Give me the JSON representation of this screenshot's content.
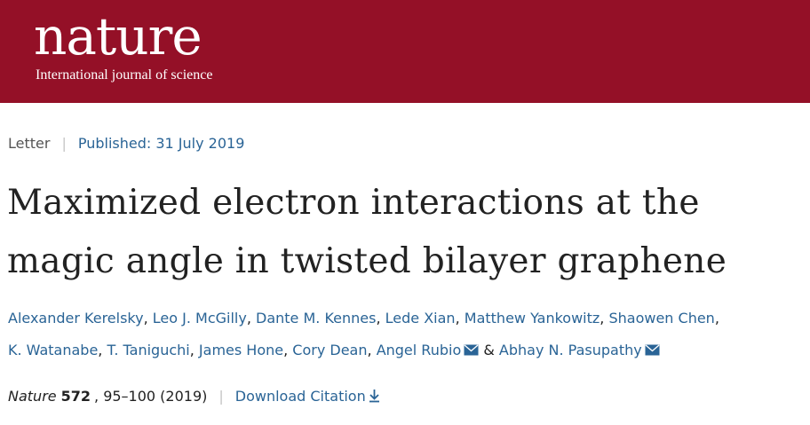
{
  "header": {
    "logo_text": "nature",
    "tagline": "International journal of science",
    "brand_color": "#941027"
  },
  "article": {
    "type": "Letter",
    "published": "Published: 31 July 2019",
    "title_line1": "Maximized electron interactions at the",
    "title_line2": "magic angle in twisted bilayer graphene",
    "authors": [
      "Alexander Kerelsky",
      "Leo J. McGilly",
      "Dante M. Kennes",
      "Lede Xian",
      "Matthew Yankowitz",
      "Shaowen Chen",
      "K. Watanabe",
      "T. Taniguchi",
      "James Hone",
      "Cory Dean",
      "Angel Rubio",
      "Abhay N. Pasupathy"
    ],
    "author_separator": ",",
    "author_ampersand": "&",
    "corresponding_icon": "mail-icon",
    "journal": "Nature",
    "volume": "572",
    "pages_year": ", 95–100 (2019)",
    "download_label": "Download Citation",
    "download_icon": "download-arrow-icon",
    "link_color": "#2a6496"
  }
}
